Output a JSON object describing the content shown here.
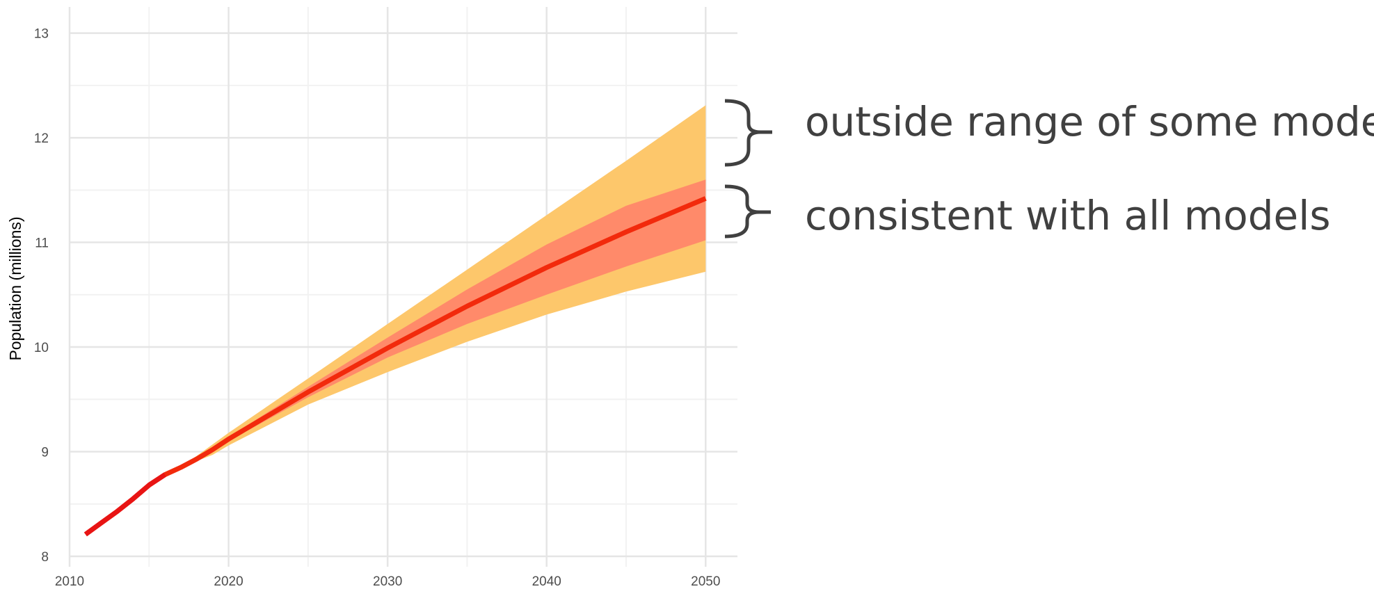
{
  "colors": {
    "outer_band": "#FDC76B",
    "inner_band": "#FF8A6A",
    "line": "#F22A0C",
    "line_start": "#E81414",
    "grid_major": "#E5E5E5",
    "grid_minor": "#F2F2F2",
    "bracket": "#404040"
  },
  "chart_data": {
    "type": "line",
    "title": "",
    "xlabel": "",
    "ylabel": "Population (millions)",
    "xlim": [
      2010,
      2052
    ],
    "ylim": [
      7.9,
      13.25
    ],
    "x_ticks": [
      2010,
      2020,
      2030,
      2040,
      2050
    ],
    "y_ticks": [
      8,
      9,
      10,
      11,
      12,
      13
    ],
    "grid": true,
    "x_tick_labels": [
      "2010",
      "2020",
      "2030",
      "2040",
      "2050"
    ],
    "y_tick_labels": [
      "8",
      "9",
      "10",
      "11",
      "12",
      "13"
    ],
    "series": [
      {
        "type": "line",
        "x": [
          2011,
          2012,
          2013,
          2014,
          2015,
          2016,
          2017,
          2018,
          2019,
          2020,
          2022,
          2025,
          2030,
          2035,
          2040,
          2045,
          2050
        ],
        "values": [
          8.21,
          8.32,
          8.43,
          8.55,
          8.68,
          8.78,
          8.85,
          8.93,
          9.02,
          9.12,
          9.3,
          9.57,
          9.99,
          10.39,
          10.76,
          11.1,
          11.42
        ]
      },
      {
        "type": "band",
        "x": [
          2016,
          2017,
          2018,
          2019,
          2020,
          2025,
          2030,
          2035,
          2040,
          2045,
          2050
        ],
        "lower": [
          8.78,
          8.85,
          8.91,
          8.97,
          9.06,
          9.45,
          9.76,
          10.05,
          10.31,
          10.53,
          10.72
        ],
        "upper": [
          8.78,
          8.86,
          8.96,
          9.07,
          9.18,
          9.7,
          10.22,
          10.74,
          11.26,
          11.78,
          12.31
        ]
      },
      {
        "type": "band",
        "x": [
          2016,
          2017,
          2018,
          2019,
          2020,
          2025,
          2030,
          2035,
          2040,
          2045,
          2050
        ],
        "lower": [
          8.78,
          8.85,
          8.93,
          9.01,
          9.1,
          9.52,
          9.9,
          10.22,
          10.5,
          10.77,
          11.02
        ],
        "upper": [
          8.78,
          8.85,
          8.94,
          9.04,
          9.14,
          9.62,
          10.09,
          10.55,
          10.98,
          11.35,
          11.6
        ]
      }
    ]
  },
  "annotations": {
    "upper": "outside range of some models",
    "lower": "consistent with all models"
  }
}
